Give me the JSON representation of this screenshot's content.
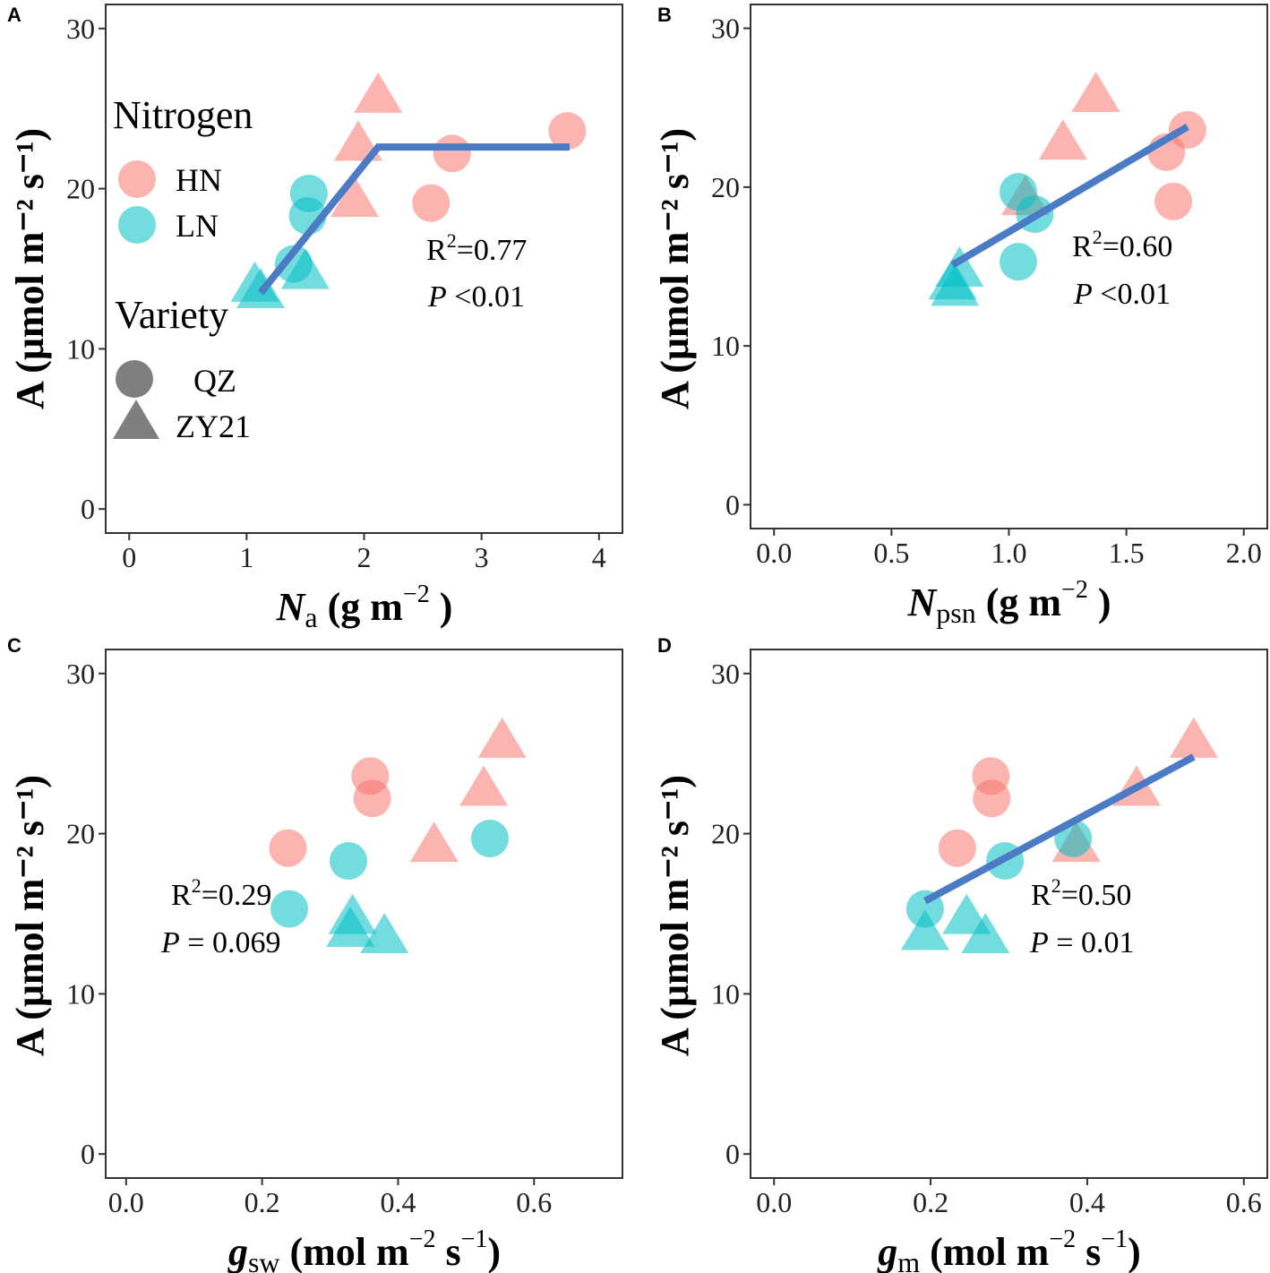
{
  "figure": {
    "colors": {
      "HN": "#F8766D",
      "LN": "#00BFC4",
      "fit": "#4A7BC4",
      "legend_shape": "#7F7F7F"
    },
    "legend": {
      "nitrogen_title": "Nitrogen",
      "nitrogen_items": [
        "HN",
        "LN"
      ],
      "variety_title": "Variety",
      "variety_items": [
        "QZ",
        "ZY21"
      ]
    }
  },
  "chart_data": [
    {
      "id": "A",
      "type": "scatter",
      "panel_label": "A",
      "xlabel": {
        "main": "N",
        "sub": "a",
        "unit_pre": " (g m",
        "sup": "−2",
        "unit_post": " )"
      },
      "ylabel": "A (μmol m⁻² s⁻¹)",
      "xlim": [
        -0.2,
        4.2
      ],
      "ylim": [
        -1.5,
        31.5
      ],
      "xticks": [
        0,
        1,
        2,
        3,
        4
      ],
      "xticklabels": [
        "0",
        "1",
        "2",
        "3",
        "4"
      ],
      "yticks": [
        0,
        10,
        20,
        30
      ],
      "yticklabels": [
        "0",
        "10",
        "20",
        "30"
      ],
      "points": [
        {
          "n": "HN",
          "v": "ZY21",
          "x": 2.12,
          "y": 25.8
        },
        {
          "n": "HN",
          "v": "ZY21",
          "x": 1.95,
          "y": 22.8
        },
        {
          "n": "HN",
          "v": "ZY21",
          "x": 1.92,
          "y": 19.3
        },
        {
          "n": "HN",
          "v": "QZ",
          "x": 3.73,
          "y": 23.6
        },
        {
          "n": "HN",
          "v": "QZ",
          "x": 2.75,
          "y": 22.2
        },
        {
          "n": "HN",
          "v": "QZ",
          "x": 2.57,
          "y": 19.1
        },
        {
          "n": "LN",
          "v": "QZ",
          "x": 1.53,
          "y": 19.7
        },
        {
          "n": "LN",
          "v": "QZ",
          "x": 1.52,
          "y": 18.3
        },
        {
          "n": "LN",
          "v": "QZ",
          "x": 1.4,
          "y": 15.3
        },
        {
          "n": "LN",
          "v": "ZY21",
          "x": 1.5,
          "y": 14.8
        },
        {
          "n": "LN",
          "v": "ZY21",
          "x": 1.07,
          "y": 14.0
        },
        {
          "n": "LN",
          "v": "ZY21",
          "x": 1.12,
          "y": 13.6
        }
      ],
      "fit": {
        "x": [
          1.12,
          2.12,
          3.75
        ],
        "y": [
          13.5,
          22.6,
          22.6
        ]
      },
      "stats": {
        "r2": "0.77",
        "p_sym": " <",
        "p_val": "0.01"
      }
    },
    {
      "id": "B",
      "type": "scatter",
      "panel_label": "B",
      "xlabel": {
        "main": "N",
        "sub": "psn",
        "unit_pre": " (g m",
        "sup": "−2",
        "unit_post": " )"
      },
      "ylabel": "A (μmol m⁻² s⁻¹)",
      "xlim": [
        -0.1,
        2.1
      ],
      "ylim": [
        -1.5,
        31.5
      ],
      "xticks": [
        0,
        0.5,
        1,
        1.5,
        2
      ],
      "xticklabels": [
        "0.0",
        "0.5",
        "1.0",
        "1.5",
        "2.0"
      ],
      "yticks": [
        0,
        10,
        20,
        30
      ],
      "yticklabels": [
        "0",
        "10",
        "20",
        "30"
      ],
      "points": [
        {
          "n": "HN",
          "v": "ZY21",
          "x": 1.37,
          "y": 25.8
        },
        {
          "n": "HN",
          "v": "ZY21",
          "x": 1.23,
          "y": 22.8
        },
        {
          "n": "HN",
          "v": "ZY21",
          "x": 1.07,
          "y": 19.3
        },
        {
          "n": "HN",
          "v": "QZ",
          "x": 1.76,
          "y": 23.6
        },
        {
          "n": "HN",
          "v": "QZ",
          "x": 1.67,
          "y": 22.2
        },
        {
          "n": "HN",
          "v": "QZ",
          "x": 1.7,
          "y": 19.1
        },
        {
          "n": "LN",
          "v": "QZ",
          "x": 1.04,
          "y": 19.7
        },
        {
          "n": "LN",
          "v": "QZ",
          "x": 1.11,
          "y": 18.3
        },
        {
          "n": "LN",
          "v": "QZ",
          "x": 1.04,
          "y": 15.3
        },
        {
          "n": "LN",
          "v": "ZY21",
          "x": 0.79,
          "y": 14.8
        },
        {
          "n": "LN",
          "v": "ZY21",
          "x": 0.76,
          "y": 14.0
        },
        {
          "n": "LN",
          "v": "ZY21",
          "x": 0.77,
          "y": 13.6
        }
      ],
      "fit": {
        "x": [
          0.76,
          1.76
        ],
        "y": [
          15.1,
          23.8
        ]
      },
      "stats": {
        "r2": "0.60",
        "p_sym": " <",
        "p_val": "0.01"
      }
    },
    {
      "id": "C",
      "type": "scatter",
      "panel_label": "C",
      "xlabel": {
        "main": "g",
        "sub": "sw",
        "unit_pre": " (mol m",
        "sup": "−2",
        "unit_mid": " s",
        "sup2": "−1",
        "unit_post": ")"
      },
      "ylabel": "A (μmol m⁻² s⁻¹)",
      "xlim": [
        -0.03,
        0.73
      ],
      "ylim": [
        -1.5,
        31.5
      ],
      "xticks": [
        0,
        0.2,
        0.4,
        0.6
      ],
      "xticklabels": [
        "0.0",
        "0.2",
        "0.4",
        "0.6"
      ],
      "yticks": [
        0,
        10,
        20,
        30
      ],
      "yticklabels": [
        "0",
        "10",
        "20",
        "30"
      ],
      "points": [
        {
          "n": "HN",
          "v": "ZY21",
          "x": 0.553,
          "y": 25.8
        },
        {
          "n": "HN",
          "v": "ZY21",
          "x": 0.526,
          "y": 22.8
        },
        {
          "n": "HN",
          "v": "ZY21",
          "x": 0.453,
          "y": 19.3
        },
        {
          "n": "HN",
          "v": "QZ",
          "x": 0.359,
          "y": 23.6
        },
        {
          "n": "HN",
          "v": "QZ",
          "x": 0.362,
          "y": 22.2
        },
        {
          "n": "HN",
          "v": "QZ",
          "x": 0.238,
          "y": 19.1
        },
        {
          "n": "LN",
          "v": "QZ",
          "x": 0.535,
          "y": 19.7
        },
        {
          "n": "LN",
          "v": "QZ",
          "x": 0.327,
          "y": 18.3
        },
        {
          "n": "LN",
          "v": "QZ",
          "x": 0.24,
          "y": 15.3
        },
        {
          "n": "LN",
          "v": "ZY21",
          "x": 0.333,
          "y": 14.8
        },
        {
          "n": "LN",
          "v": "ZY21",
          "x": 0.33,
          "y": 14.0
        },
        {
          "n": "LN",
          "v": "ZY21",
          "x": 0.38,
          "y": 13.6
        }
      ],
      "fit": null,
      "stats": {
        "r2": "0.29",
        "p_sym": " = ",
        "p_val": "0.069"
      }
    },
    {
      "id": "D",
      "type": "scatter",
      "panel_label": "D",
      "xlabel": {
        "main": "g",
        "sub": "m",
        "unit_pre": " (mol m",
        "sup": "−2",
        "unit_mid": " s",
        "sup2": "−1",
        "unit_post": ")"
      },
      "ylabel": "A (μmol m⁻² s⁻¹)",
      "xlim": [
        -0.03,
        0.63
      ],
      "ylim": [
        -1.5,
        31.5
      ],
      "xticks": [
        0,
        0.2,
        0.4,
        0.6
      ],
      "xticklabels": [
        "0.0",
        "0.2",
        "0.4",
        "0.6"
      ],
      "yticks": [
        0,
        10,
        20,
        30
      ],
      "yticklabels": [
        "0",
        "10",
        "20",
        "30"
      ],
      "points": [
        {
          "n": "HN",
          "v": "ZY21",
          "x": 0.536,
          "y": 25.8
        },
        {
          "n": "HN",
          "v": "ZY21",
          "x": 0.463,
          "y": 22.8
        },
        {
          "n": "HN",
          "v": "ZY21",
          "x": 0.386,
          "y": 19.3
        },
        {
          "n": "HN",
          "v": "QZ",
          "x": 0.277,
          "y": 23.6
        },
        {
          "n": "HN",
          "v": "QZ",
          "x": 0.278,
          "y": 22.2
        },
        {
          "n": "HN",
          "v": "QZ",
          "x": 0.234,
          "y": 19.1
        },
        {
          "n": "LN",
          "v": "QZ",
          "x": 0.382,
          "y": 19.7
        },
        {
          "n": "LN",
          "v": "QZ",
          "x": 0.295,
          "y": 18.3
        },
        {
          "n": "LN",
          "v": "QZ",
          "x": 0.193,
          "y": 15.3
        },
        {
          "n": "LN",
          "v": "ZY21",
          "x": 0.246,
          "y": 14.8
        },
        {
          "n": "LN",
          "v": "ZY21",
          "x": 0.193,
          "y": 13.8
        },
        {
          "n": "LN",
          "v": "ZY21",
          "x": 0.27,
          "y": 13.6
        }
      ],
      "fit": {
        "x": [
          0.193,
          0.536
        ],
        "y": [
          15.8,
          24.8
        ]
      },
      "stats": {
        "r2": "0.50",
        "p_sym": " = ",
        "p_val": "0.01"
      }
    }
  ]
}
